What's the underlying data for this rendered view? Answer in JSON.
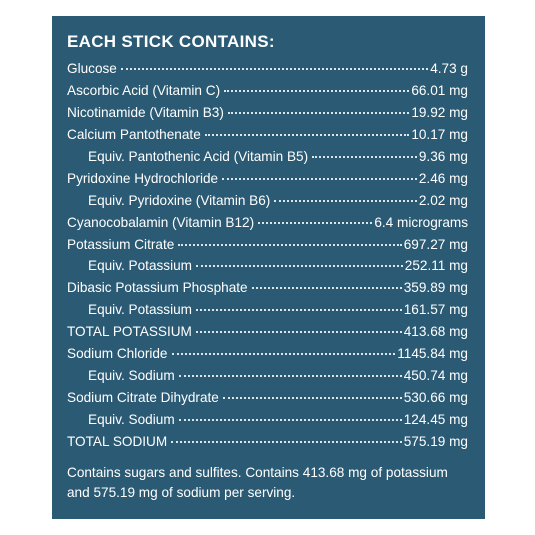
{
  "title": "EACH STICK CONTAINS:",
  "rows": [
    {
      "label": "Glucose",
      "amount": "4.73 g"
    },
    {
      "label": "Ascorbic Acid (Vitamin C)",
      "amount": "66.01 mg"
    },
    {
      "label": "Nicotinamide (Vitamin B3)",
      "amount": "19.92 mg"
    },
    {
      "label": "Calcium Pantothenate",
      "amount": "10.17 mg",
      "sub": [
        {
          "label": "Equiv. Pantothenic Acid (Vitamin B5)",
          "amount": "9.36 mg"
        }
      ]
    },
    {
      "label": "Pyridoxine Hydrochloride",
      "amount": "2.46 mg",
      "sub": [
        {
          "label": "Equiv. Pyridoxine (Vitamin B6)",
          "amount": "2.02 mg"
        }
      ]
    },
    {
      "label": "Cyanocobalamin (Vitamin B12)",
      "amount": "6.4 micrograms"
    },
    {
      "label": "Potassium Citrate",
      "amount": "697.27 mg",
      "sub": [
        {
          "label": "Equiv. Potassium",
          "amount": "252.11 mg"
        }
      ]
    },
    {
      "label": "Dibasic Potassium Phosphate",
      "amount": "359.89 mg",
      "sub": [
        {
          "label": "Equiv. Potassium",
          "amount": "161.57 mg"
        }
      ]
    },
    {
      "label": "TOTAL POTASSIUM",
      "amount": "413.68 mg"
    },
    {
      "label": "Sodium Chloride",
      "amount": "1145.84 mg",
      "sub": [
        {
          "label": "Equiv. Sodium",
          "amount": "450.74 mg"
        }
      ]
    },
    {
      "label": "Sodium Citrate Dihydrate",
      "amount": "530.66 mg",
      "sub": [
        {
          "label": "Equiv. Sodium",
          "amount": "124.45 mg"
        }
      ]
    },
    {
      "label": "TOTAL SODIUM",
      "amount": "575.19 mg"
    }
  ],
  "note": "Contains sugars and sulfites. Contains 413.68 mg of potassium and 575.19 mg of sodium per serving."
}
